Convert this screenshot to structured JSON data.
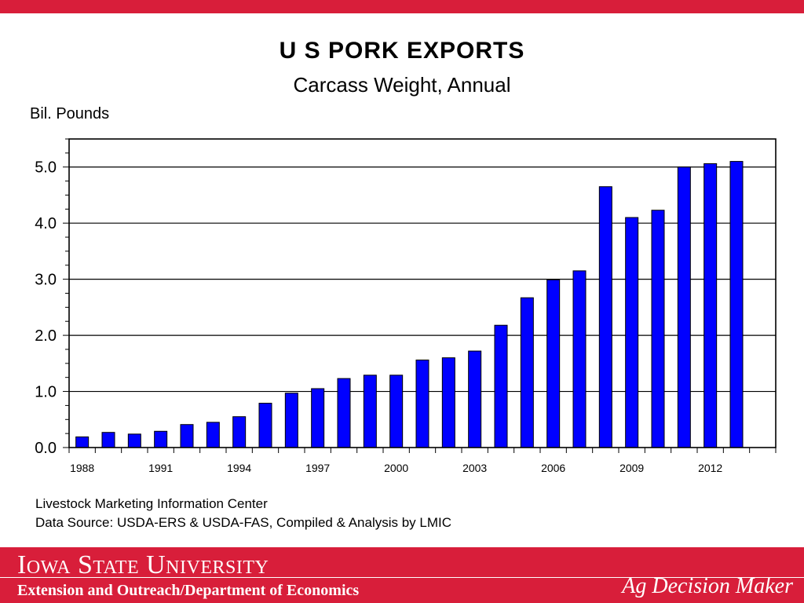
{
  "colors": {
    "brand_red": "#d81e3a",
    "bar_fill": "#0000ff"
  },
  "header": {
    "title": "U S  PORK  EXPORTS",
    "subtitle": "Carcass Weight, Annual"
  },
  "source": {
    "line1": "Livestock Marketing Information Center",
    "line2": "Data Source:  USDA-ERS & USDA-FAS, Compiled & Analysis by LMIC"
  },
  "footer": {
    "university": "Iowa State University",
    "department": "Extension and Outreach/Department of Economics",
    "brand": "Ag Decision Maker"
  },
  "chart_data": {
    "type": "bar",
    "ylabel": "Bil. Pounds",
    "xlabel": "",
    "ylim": [
      0,
      5.5
    ],
    "yticks": [
      0,
      1,
      2,
      3,
      4,
      5
    ],
    "ytick_labels": [
      "0.0",
      "1.0",
      "2.0",
      "3.0",
      "4.0",
      "5.0"
    ],
    "grid": true,
    "categories": [
      "1988",
      "1989",
      "1990",
      "1991",
      "1992",
      "1993",
      "1994",
      "1995",
      "1996",
      "1997",
      "1998",
      "1999",
      "2000",
      "2001",
      "2002",
      "2003",
      "2004",
      "2005",
      "2006",
      "2007",
      "2008",
      "2009",
      "2010",
      "2011",
      "2012",
      "2013",
      "2014"
    ],
    "xtick_labels": [
      "1988",
      "1991",
      "1994",
      "1997",
      "2000",
      "2003",
      "2006",
      "2009",
      "2012"
    ],
    "values": [
      0.19,
      0.27,
      0.24,
      0.29,
      0.41,
      0.45,
      0.55,
      0.79,
      0.97,
      1.05,
      1.23,
      1.29,
      1.29,
      1.56,
      1.6,
      1.72,
      2.18,
      2.67,
      2.99,
      3.15,
      4.65,
      4.1,
      4.23,
      5.0,
      5.06,
      5.1,
      0
    ]
  }
}
